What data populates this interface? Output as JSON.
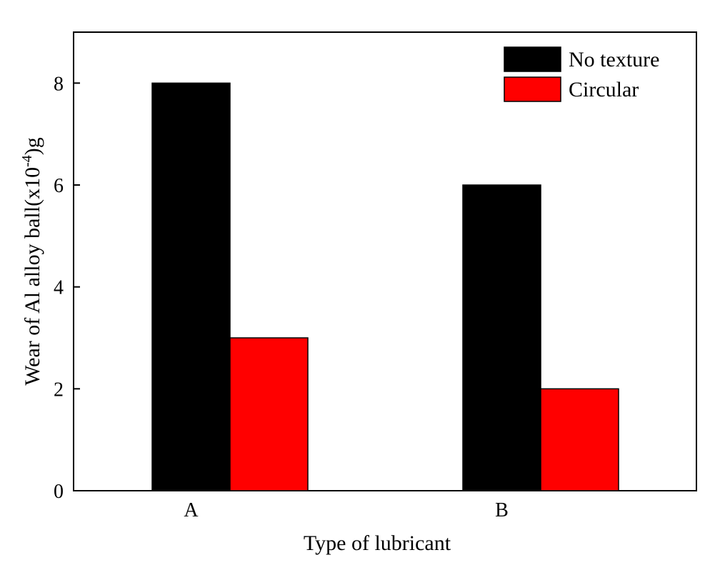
{
  "chart_data": {
    "type": "bar",
    "categories": [
      "A",
      "B"
    ],
    "series": [
      {
        "name": "No texture",
        "values": [
          8,
          6
        ],
        "color": "#000000"
      },
      {
        "name": "Circular",
        "values": [
          3,
          2
        ],
        "color": "#ff0000"
      }
    ],
    "title": "",
    "xlabel": "Type of lubricant",
    "ylabel": "Wear of Al alloy ball(x10",
    "ylabel_superscript": "-4",
    "ylabel_suffix": ")g",
    "ylim": [
      0,
      9
    ],
    "yticks": [
      0,
      2,
      4,
      6,
      8
    ],
    "grid": false,
    "legend_position": "top-right"
  }
}
